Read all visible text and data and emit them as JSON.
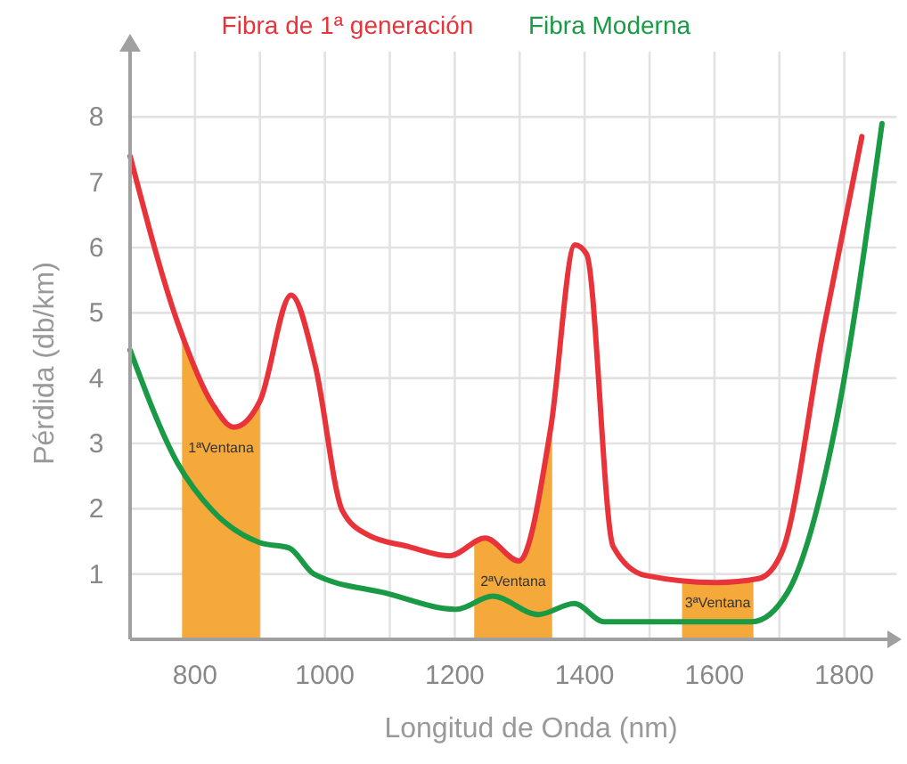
{
  "chart_data": {
    "type": "line",
    "xlabel": "Longitud de Onda (nm)",
    "ylabel": "Pérdida (db/km)",
    "xlim": [
      700,
      1880
    ],
    "ylim": [
      0,
      9
    ],
    "xticks": [
      800,
      {
        "value": 900,
        "label": null
      },
      1000,
      {
        "value": 1100,
        "label": null
      },
      1200,
      {
        "value": 1300,
        "label": null
      },
      1400,
      {
        "value": 1500,
        "label": null
      },
      1600,
      {
        "value": 1700,
        "label": null
      },
      1800
    ],
    "yticks": [
      1,
      2,
      3,
      4,
      5,
      6,
      7,
      8
    ],
    "grid": true,
    "legend": "top",
    "line_style": "solid",
    "marker": "none",
    "series": [
      {
        "name": "Fibra de 1ª generación",
        "color": "#e8333a",
        "x": [
          700,
          775,
          827,
          860,
          900,
          948,
          985,
          1027,
          1066,
          1129,
          1192,
          1247,
          1299,
          1348,
          1385,
          1403,
          1444,
          1493,
          1603,
          1668,
          1704,
          1767,
          1827
        ],
        "values": [
          7.4,
          4.8,
          3.6,
          3.25,
          3.65,
          5.27,
          4.2,
          1.97,
          1.6,
          1.42,
          1.28,
          1.55,
          1.2,
          3.25,
          6.04,
          5.9,
          1.42,
          0.98,
          0.87,
          0.93,
          1.34,
          4.7,
          7.7
        ]
      },
      {
        "name": "Fibra Moderna",
        "color": "#1a9a45",
        "x": [
          700,
          773,
          827,
          900,
          945,
          983,
          1093,
          1203,
          1258,
          1329,
          1384,
          1430,
          1658,
          1712,
          1786,
          1858
        ],
        "values": [
          4.43,
          2.7,
          1.97,
          1.48,
          1.4,
          1.0,
          0.71,
          0.46,
          0.66,
          0.38,
          0.55,
          0.27,
          0.27,
          0.71,
          3.25,
          7.9
        ]
      }
    ],
    "bands": [
      {
        "axis": "x",
        "from": 780,
        "to": 900,
        "label": "1ªVentana",
        "color": "#f5a93a"
      },
      {
        "axis": "x",
        "from": 1230,
        "to": 1350,
        "label": "2ªVentana",
        "color": "#f5a93a"
      },
      {
        "axis": "x",
        "from": 1550,
        "to": 1660,
        "label": "3ªVentana",
        "color": "#f5a93a"
      }
    ]
  }
}
